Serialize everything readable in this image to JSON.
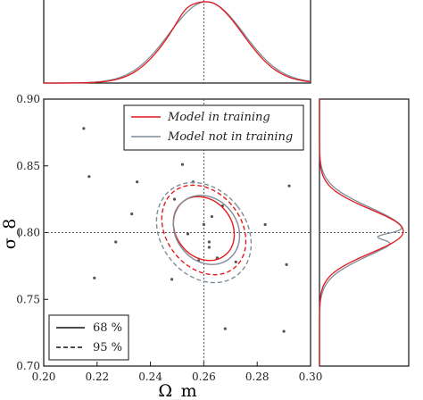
{
  "chart_data": {
    "type": "scatter",
    "title": "",
    "xlabel": "Ω_m",
    "ylabel": "σ_8",
    "xlim": [
      0.2,
      0.3
    ],
    "ylim": [
      0.7,
      0.9
    ],
    "x_ticks": [
      "0.20",
      "0.22",
      "0.24",
      "0.26",
      "0.28",
      "0.30"
    ],
    "y_ticks": [
      "0.70",
      "0.75",
      "0.80",
      "0.85",
      "0.90"
    ],
    "fiducial": {
      "x": 0.26,
      "y": 0.8
    },
    "scatter_points": [
      {
        "x": 0.215,
        "y": 0.878
      },
      {
        "x": 0.217,
        "y": 0.842
      },
      {
        "x": 0.219,
        "y": 0.766
      },
      {
        "x": 0.227,
        "y": 0.793
      },
      {
        "x": 0.233,
        "y": 0.814
      },
      {
        "x": 0.235,
        "y": 0.838
      },
      {
        "x": 0.248,
        "y": 0.765
      },
      {
        "x": 0.249,
        "y": 0.825
      },
      {
        "x": 0.252,
        "y": 0.851
      },
      {
        "x": 0.254,
        "y": 0.799
      },
      {
        "x": 0.256,
        "y": 0.838
      },
      {
        "x": 0.258,
        "y": 0.779
      },
      {
        "x": 0.26,
        "y": 0.806
      },
      {
        "x": 0.262,
        "y": 0.793
      },
      {
        "x": 0.262,
        "y": 0.789
      },
      {
        "x": 0.263,
        "y": 0.812
      },
      {
        "x": 0.265,
        "y": 0.781
      },
      {
        "x": 0.267,
        "y": 0.82
      },
      {
        "x": 0.268,
        "y": 0.728
      },
      {
        "x": 0.272,
        "y": 0.778
      },
      {
        "x": 0.283,
        "y": 0.806
      },
      {
        "x": 0.29,
        "y": 0.726
      },
      {
        "x": 0.291,
        "y": 0.776
      },
      {
        "x": 0.292,
        "y": 0.835
      }
    ],
    "legend_models": {
      "placement": "top-right",
      "entries": [
        {
          "label": "Model in training",
          "color": "#e41a1c"
        },
        {
          "label": "Model not in training",
          "color": "#7f8c9a"
        }
      ]
    },
    "legend_levels": {
      "placement": "bottom-left",
      "entries": [
        {
          "label": "68 %",
          "style": "solid"
        },
        {
          "label": "95 %",
          "style": "dashed"
        }
      ]
    },
    "contours": [
      {
        "model": "in training",
        "level": "68%",
        "center": [
          0.26,
          0.803
        ],
        "sx": 0.0105,
        "sy": 0.0255,
        "rot": 38
      },
      {
        "model": "not in training",
        "level": "68%",
        "center": [
          0.261,
          0.802
        ],
        "sx": 0.0115,
        "sy": 0.0275,
        "rot": 38
      },
      {
        "model": "in training",
        "level": "95%",
        "center": [
          0.26,
          0.802
        ],
        "sx": 0.014,
        "sy": 0.0365,
        "rot": 38
      },
      {
        "model": "not in training",
        "level": "95%",
        "center": [
          0.26,
          0.8
        ],
        "sx": 0.016,
        "sy": 0.0405,
        "rot": 38
      }
    ],
    "marginal_x": {
      "center": 0.261,
      "width": 0.0135,
      "series": [
        "Model in training",
        "Model not in training"
      ]
    },
    "marginal_y": {
      "center": 0.801,
      "width": 0.0165,
      "series": [
        "Model in training",
        "Model not in training"
      ]
    },
    "colors": {
      "in_training": "#e41a1c",
      "not_in_training": "#7f8c9a",
      "fiducial": "#555555",
      "points": "#555555"
    }
  }
}
